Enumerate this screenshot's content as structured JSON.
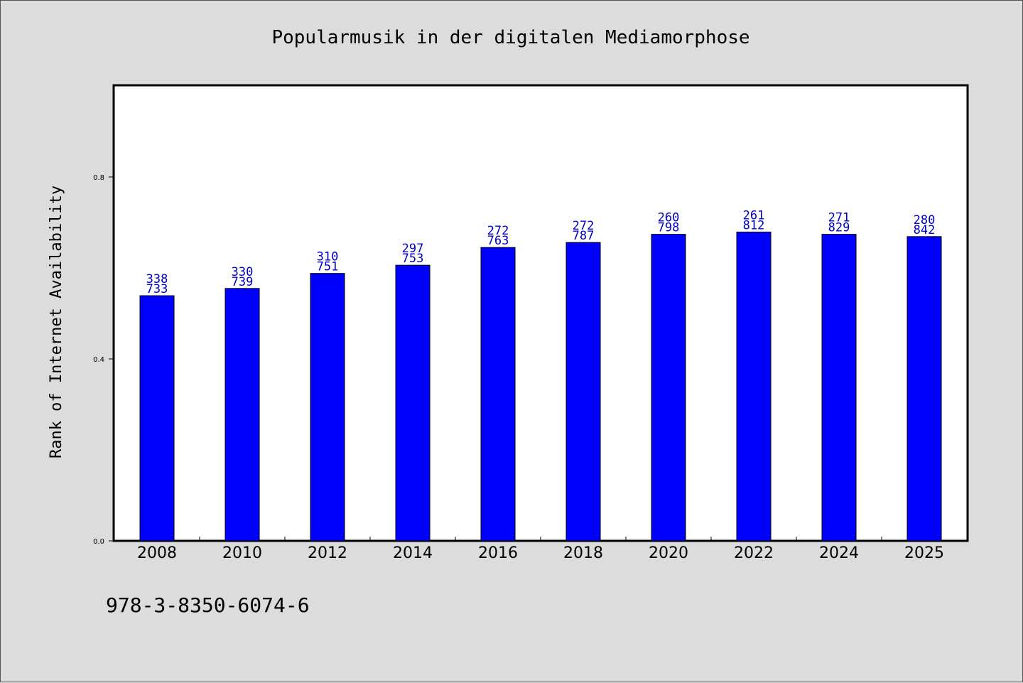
{
  "chart_data": {
    "type": "bar",
    "title": "Popularmusik in der digitalen Mediamorphose",
    "xlabel": "",
    "ylabel": "Rank of Internet Availability",
    "ylim": [
      0,
      1.0
    ],
    "yticks": [
      "0.0",
      "0.4",
      "0.8"
    ],
    "categories": [
      "2008",
      "2010",
      "2012",
      "2014",
      "2016",
      "2018",
      "2020",
      "2022",
      "2024",
      "2025"
    ],
    "values": [
      0.539,
      0.555,
      0.588,
      0.606,
      0.645,
      0.656,
      0.674,
      0.679,
      0.674,
      0.669
    ],
    "labels_top": [
      "338",
      "330",
      "310",
      "297",
      "272",
      "272",
      "260",
      "261",
      "271",
      "280"
    ],
    "labels_bottom": [
      "733",
      "739",
      "751",
      "753",
      "763",
      "787",
      "798",
      "812",
      "829",
      "842"
    ],
    "bar_color": "#0000ff",
    "label_color": "#0000cc",
    "grid": false,
    "legend": "none"
  },
  "footer": {
    "isbn": "978-3-8350-6074-6"
  }
}
